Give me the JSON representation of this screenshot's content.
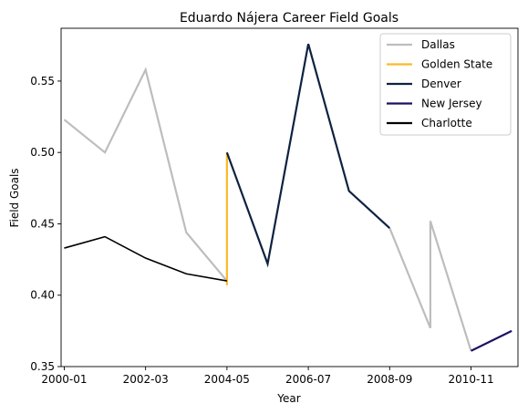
{
  "chart_data": {
    "type": "line",
    "title": "Eduardo Nájera Career Field Goals",
    "xlabel": "Year",
    "ylabel": "Field Goals",
    "x_ticks": [
      "2000-01",
      "2002-03",
      "2004-05",
      "2006-07",
      "2008-09",
      "2010-11"
    ],
    "x_range": [
      "1999-12",
      "2012-02"
    ],
    "y_ticks": [
      "0.35",
      "0.40",
      "0.45",
      "0.50",
      "0.55"
    ],
    "ylim": [
      0.35,
      0.587
    ],
    "grid": false,
    "legend_position": "top-right",
    "series": [
      {
        "name": "Dallas",
        "color": "#bdbdbd",
        "points": [
          {
            "x": "2000-01",
            "y": 0.523
          },
          {
            "x": "2001-02",
            "y": 0.5
          },
          {
            "x": "2002-03",
            "y": 0.558
          },
          {
            "x": "2003-04",
            "y": 0.444
          },
          {
            "x": "2004-05",
            "y": 0.41
          }
        ]
      },
      {
        "name": "Dallas",
        "color": "#bdbdbd",
        "points": [
          {
            "x": "2008-09",
            "y": 0.447
          },
          {
            "x": "2009-10",
            "y": 0.377
          },
          {
            "x": "2009-10",
            "y": 0.452
          },
          {
            "x": "2010-11",
            "y": 0.361
          }
        ]
      },
      {
        "name": "Golden State",
        "color": "#fdb927",
        "points": [
          {
            "x": "2004-05",
            "y": 0.407
          },
          {
            "x": "2004-05",
            "y": 0.5
          }
        ]
      },
      {
        "name": "Denver",
        "color": "#0e2240",
        "points": [
          {
            "x": "2004-05",
            "y": 0.5
          },
          {
            "x": "2005-06",
            "y": 0.422
          },
          {
            "x": "2006-07",
            "y": 0.576
          },
          {
            "x": "2007-08",
            "y": 0.473
          },
          {
            "x": "2008-09",
            "y": 0.447
          }
        ]
      },
      {
        "name": "New Jersey",
        "color": "#1d1160",
        "points": [
          {
            "x": "2010-11",
            "y": 0.361
          },
          {
            "x": "2011-12",
            "y": 0.375
          }
        ]
      },
      {
        "name": "Charlotte",
        "color": "#000000",
        "points": [
          {
            "x": "2000-01",
            "y": 0.433
          },
          {
            "x": "2001-02",
            "y": 0.441
          },
          {
            "x": "2002-03",
            "y": 0.426
          },
          {
            "x": "2003-04",
            "y": 0.415
          },
          {
            "x": "2004-05",
            "y": 0.41
          }
        ]
      }
    ],
    "legend": [
      {
        "label": "Dallas",
        "color": "#bdbdbd"
      },
      {
        "label": "Golden State",
        "color": "#fdb927"
      },
      {
        "label": "Denver",
        "color": "#0e2240"
      },
      {
        "label": "New Jersey",
        "color": "#1d1160"
      },
      {
        "label": "Charlotte",
        "color": "#000000"
      }
    ]
  }
}
